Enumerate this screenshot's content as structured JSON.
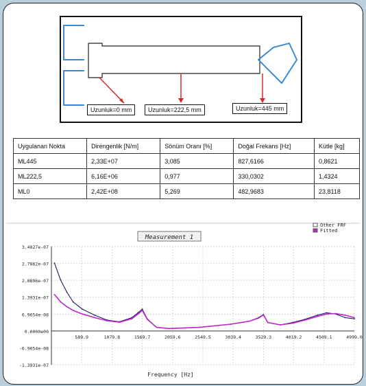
{
  "diagram": {
    "labels": [
      "Uzunluk=0 mm",
      "Uzunluk=222,5 mm",
      "Uzunluk=445 mm"
    ]
  },
  "table": {
    "headers": [
      "Uygulanan Nokta",
      "Direngenlik [N/m]",
      "Sönüm Oranı [%]",
      "Doğal Frekans [Hz]",
      "Kütle [kg]"
    ],
    "rows": [
      [
        "ML445",
        "2,33E+07",
        "3,085",
        "827,6166",
        "0,8621"
      ],
      [
        "ML222,5",
        "6,16E+06",
        "0,977",
        "330,0302",
        "1,4324"
      ],
      [
        "ML0",
        "2,42E+08",
        "5,269",
        "482,9683",
        "23,8118"
      ]
    ]
  },
  "chart_data": {
    "type": "line",
    "title": "Measurement 1",
    "xlabel": "Frequency [Hz]",
    "ylabel": "",
    "xlim": [
      100,
      4999.0
    ],
    "ylim": [
      -1.3931e-07,
      3.4827e-07
    ],
    "x_ticks": [
      "589.9",
      "1079.8",
      "1569.7",
      "2059.6",
      "2549.5",
      "3039.4",
      "3529.3",
      "4019.2",
      "4509.1",
      "4999.0"
    ],
    "y_ticks": [
      "3.4827e-07",
      "2.7862e-07",
      "2.0896e-07",
      "1.3931e-07",
      "6.9654e-08",
      "0.0000e00",
      "-6.9654e-08",
      "-1.3931e-07"
    ],
    "legend": [
      "Other FRF",
      "Fitted"
    ],
    "legend_position": "top-right",
    "grid": true,
    "series": [
      {
        "name": "Other FRF",
        "color": "#1a1a6e",
        "x": [
          150,
          250,
          350,
          450,
          600,
          800,
          1000,
          1200,
          1400,
          1500,
          1570,
          1650,
          1800,
          2000,
          2500,
          3000,
          3300,
          3450,
          3529,
          3600,
          3800,
          4000,
          4200,
          4400,
          4550,
          4700,
          4850,
          4999
        ],
        "y": [
          2.8e-07,
          2.1e-07,
          1.6e-07,
          1.2e-07,
          9e-08,
          6.5e-08,
          4.5e-08,
          3.8e-08,
          5.5e-08,
          7.5e-08,
          9e-08,
          5e-08,
          1.5e-08,
          1e-08,
          1.5e-08,
          2.8e-08,
          4e-08,
          5.5e-08,
          6.8e-08,
          3.5e-08,
          2.5e-08,
          3.5e-08,
          4.8e-08,
          6.5e-08,
          7.5e-08,
          7e-08,
          5.5e-08,
          5e-08
        ]
      },
      {
        "name": "Fitted",
        "color": "#c026c9",
        "x": [
          150,
          250,
          350,
          450,
          600,
          800,
          1000,
          1200,
          1400,
          1500,
          1570,
          1650,
          1800,
          2000,
          2500,
          3000,
          3300,
          3450,
          3529,
          3600,
          3800,
          4000,
          4200,
          4400,
          4550,
          4700,
          4850,
          4999
        ],
        "y": [
          1.5e-07,
          1.2e-07,
          1e-07,
          8.5e-08,
          7e-08,
          5.5e-08,
          4.2e-08,
          3.6e-08,
          5e-08,
          7e-08,
          8.5e-08,
          4.8e-08,
          1.5e-08,
          1e-08,
          1.5e-08,
          2.8e-08,
          4e-08,
          5.3e-08,
          6.6e-08,
          3.5e-08,
          2.5e-08,
          3.2e-08,
          4.5e-08,
          6e-08,
          7e-08,
          7.2e-08,
          6.5e-08,
          5.5e-08
        ]
      }
    ]
  }
}
